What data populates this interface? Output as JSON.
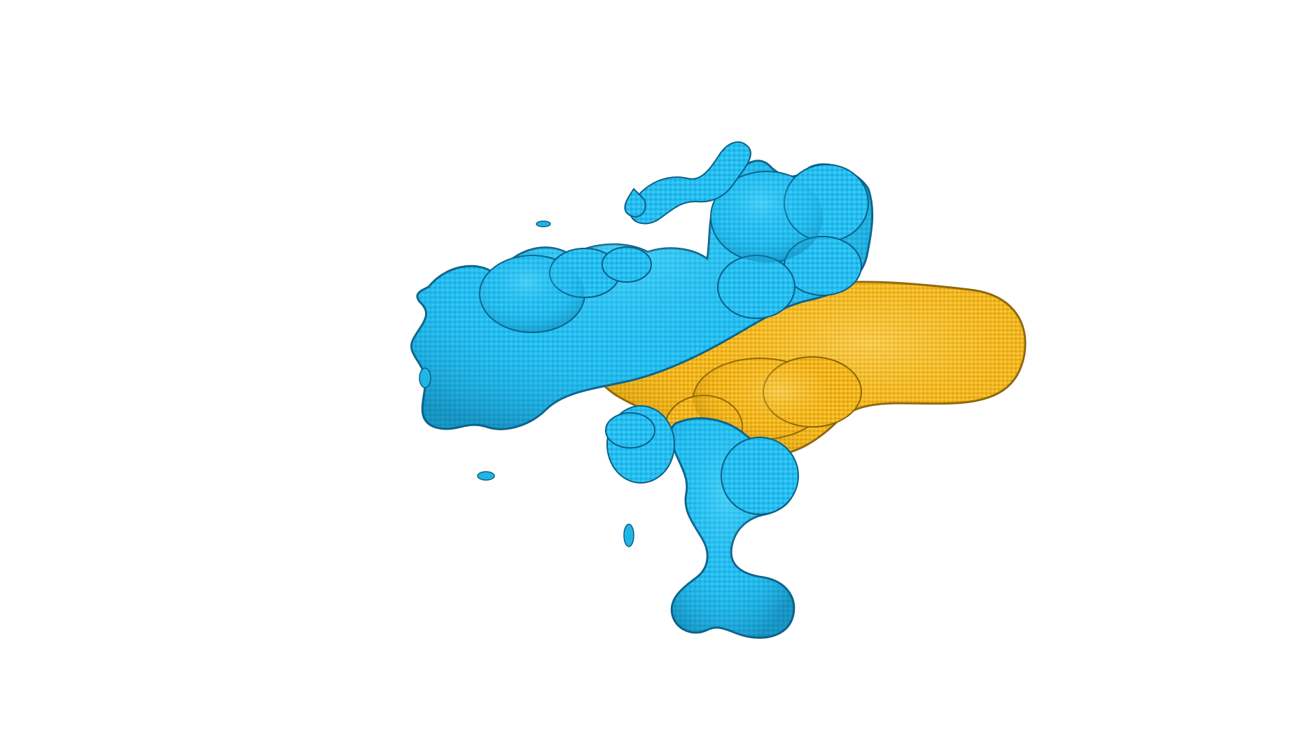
{
  "scene": {
    "background_color": "#ffffff",
    "surfaces": [
      {
        "name": "blue-surface",
        "color": "#1fb6e6",
        "edge_color": "#0b5f86"
      },
      {
        "name": "gold-surface",
        "color": "#f5b71b",
        "edge_color": "#8a6508"
      }
    ]
  }
}
